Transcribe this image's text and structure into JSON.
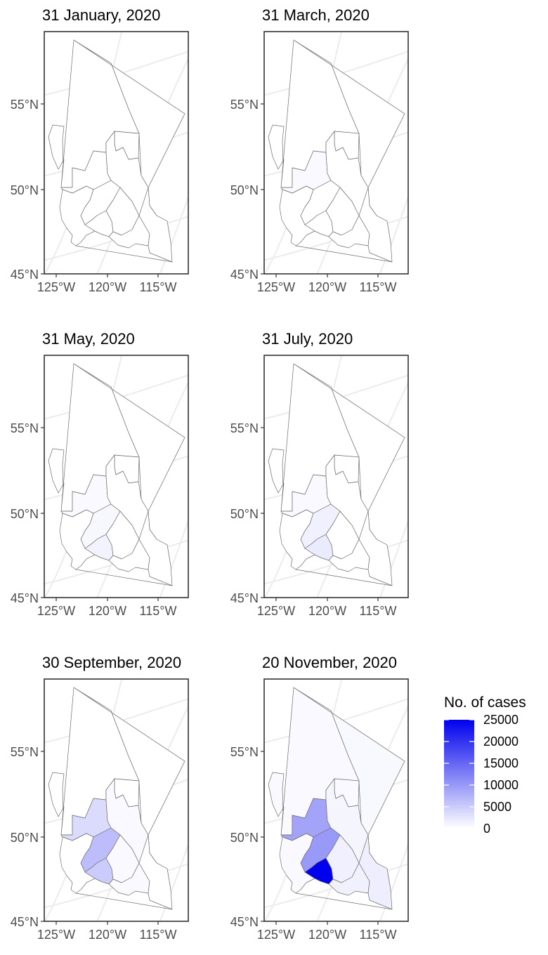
{
  "figure": {
    "latitude_ticks": [
      "55°N",
      "50°N",
      "45°N"
    ],
    "longitude_ticks": [
      "125°W",
      "120°W",
      "115°W"
    ],
    "panels": [
      {
        "title": "31 January, 2020",
        "regions": {
          "north": 0,
          "northeast": 0,
          "northwest": 0,
          "coast": 0,
          "cariboo": 0,
          "island": 0,
          "fraser": 0,
          "vancouver": 0,
          "southcentral": 0,
          "interior": 0,
          "kootenay": 0
        }
      },
      {
        "title": "31 March, 2020",
        "regions": {
          "north": 0,
          "northeast": 0,
          "northwest": 0,
          "coast": 400,
          "cariboo": 0,
          "island": 0,
          "fraser": 0,
          "vancouver": 0,
          "southcentral": 0,
          "interior": 0,
          "kootenay": 0
        }
      },
      {
        "title": "31 May, 2020",
        "regions": {
          "north": 0,
          "northeast": 0,
          "northwest": 0,
          "coast": 500,
          "cariboo": 0,
          "island": 0,
          "fraser": 800,
          "vancouver": 1200,
          "southcentral": 0,
          "interior": 0,
          "kootenay": 0
        }
      },
      {
        "title": "31 July, 2020",
        "regions": {
          "north": 0,
          "northeast": 0,
          "northwest": 0,
          "coast": 600,
          "cariboo": 0,
          "island": 0,
          "fraser": 1500,
          "vancouver": 2000,
          "southcentral": 0,
          "interior": 0,
          "kootenay": 0
        }
      },
      {
        "title": "30 September, 2020",
        "regions": {
          "north": 0,
          "northeast": 0,
          "northwest": 0,
          "coast": 3500,
          "cariboo": 200,
          "island": 0,
          "fraser": 6500,
          "vancouver": 5000,
          "southcentral": 300,
          "interior": 300,
          "kootenay": 0
        }
      },
      {
        "title": "20 November, 2020",
        "regions": {
          "north": 600,
          "northeast": 700,
          "northwest": 600,
          "coast": 9000,
          "cariboo": 1000,
          "island": 600,
          "fraser": 10000,
          "vancouver": 25000,
          "southcentral": 1500,
          "interior": 1400,
          "kootenay": 1700
        }
      }
    ]
  },
  "legend": {
    "title": "No. of cases",
    "ticks": [
      "25000",
      "20000",
      "15000",
      "10000",
      "5000",
      "0"
    ],
    "tick_values": [
      25000,
      20000,
      15000,
      10000,
      5000,
      0
    ],
    "max": 25000,
    "color_low": "#ffffff",
    "color_high": "#0000ee"
  }
}
